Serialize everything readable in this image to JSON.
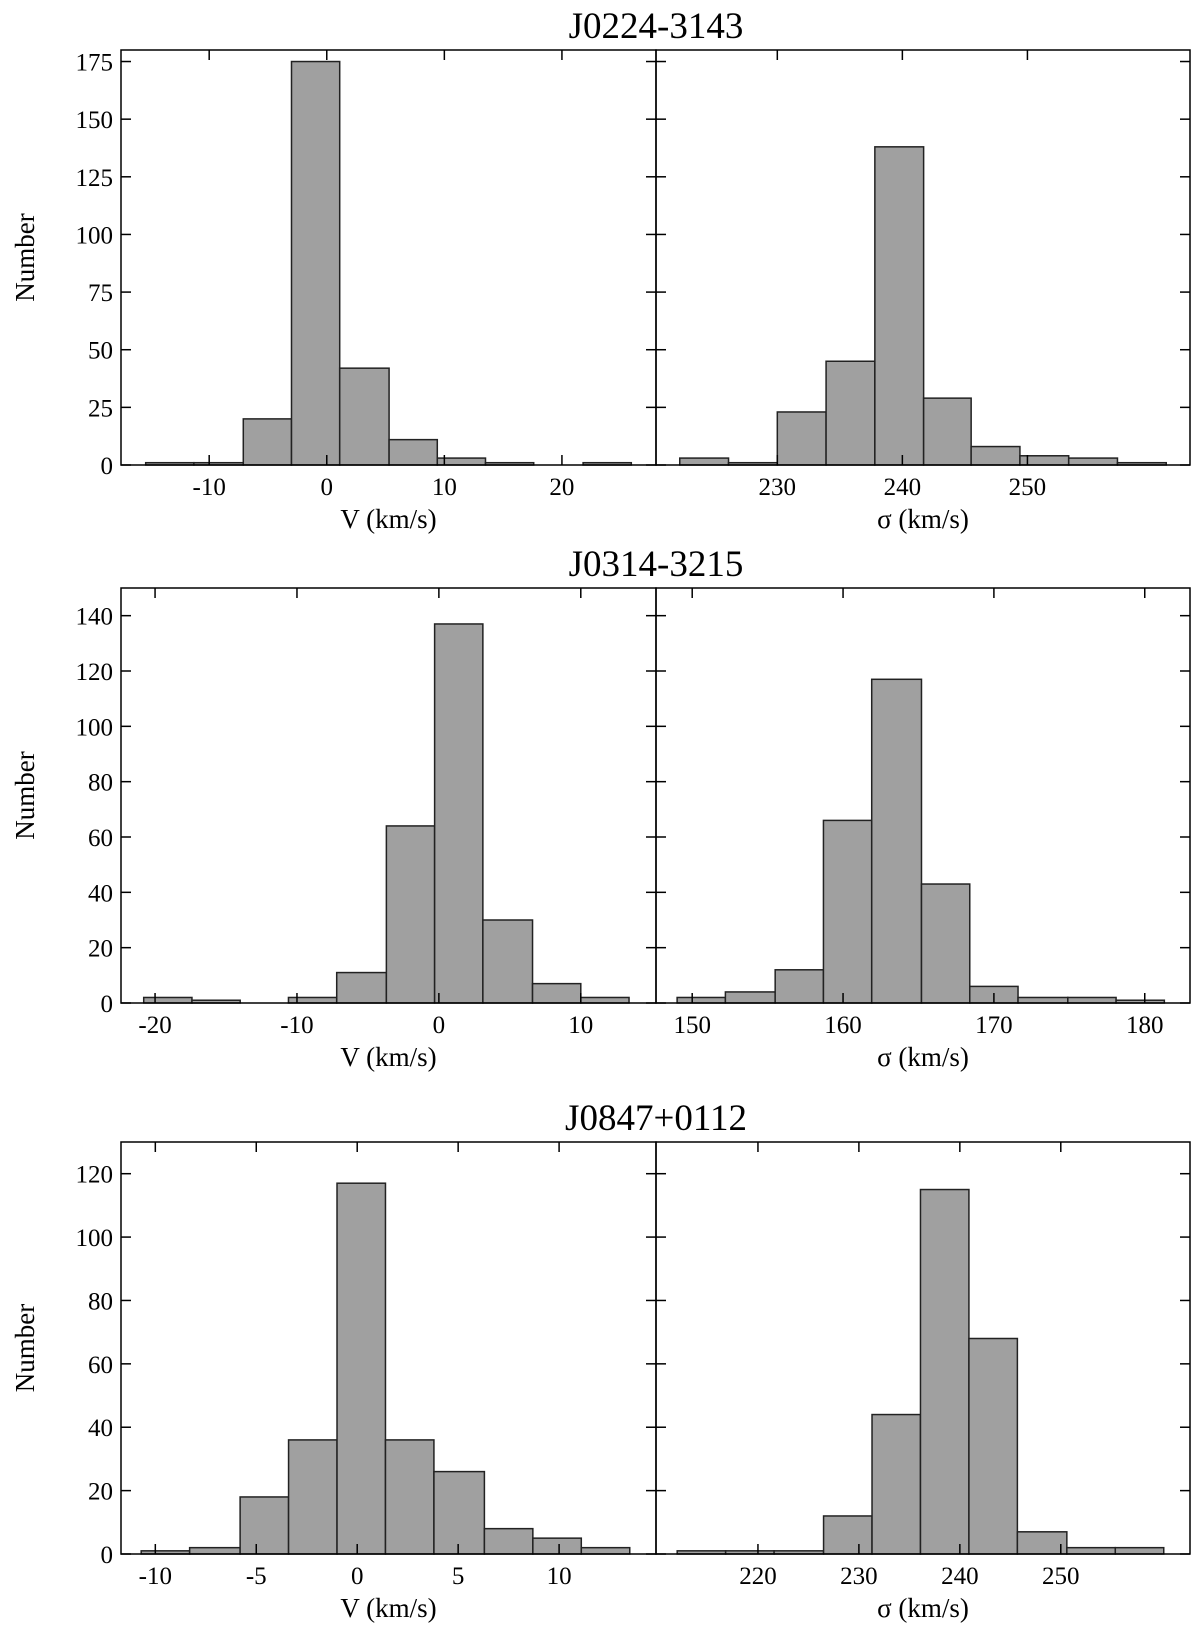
{
  "chart_data": [
    {
      "type": "histogram",
      "title": "J0224-3143",
      "xlabel": "V (km/s)",
      "ylabel": "Number",
      "color": "#a0a0a0",
      "bins": [
        -15.4,
        -11.3,
        -7.1,
        -3.0,
        1.1,
        5.3,
        9.4,
        13.5,
        17.6,
        21.8,
        25.9
      ],
      "values": [
        1,
        1,
        20,
        175,
        42,
        11,
        3,
        1,
        0,
        1
      ],
      "xlim": [
        -17.5,
        28
      ],
      "xticks": [
        -10,
        0,
        10,
        20
      ],
      "ylim": [
        0,
        180
      ],
      "yticks": [
        0,
        25,
        50,
        75,
        100,
        125,
        150,
        175
      ]
    },
    {
      "type": "histogram",
      "xlabel": "σ (km/s)",
      "color": "#a0a0a0",
      "bins": [
        222.2,
        226.1,
        230.0,
        233.9,
        237.8,
        241.7,
        245.5,
        249.4,
        253.3,
        257.2,
        261.1
      ],
      "values": [
        3,
        1,
        23,
        45,
        138,
        29,
        8,
        4,
        3,
        1
      ],
      "xlim": [
        220.3,
        263.0
      ],
      "xticks": [
        230,
        240,
        250
      ],
      "ylim": [
        0,
        180
      ]
    },
    {
      "type": "histogram",
      "title": "J0314-3215",
      "xlabel": "V (km/s)",
      "ylabel": "Number",
      "color": "#a0a0a0",
      "bins": [
        -20.8,
        -17.4,
        -14.0,
        -10.6,
        -7.2,
        -3.7,
        -0.3,
        3.1,
        6.6,
        10.0,
        13.4
      ],
      "values": [
        2,
        1,
        0,
        2,
        11,
        64,
        137,
        30,
        7,
        2
      ],
      "xlim": [
        -22.4,
        15.3
      ],
      "xticks": [
        -20,
        -10,
        0,
        10
      ],
      "ylim": [
        0,
        150
      ],
      "yticks": [
        0,
        20,
        40,
        60,
        80,
        100,
        120,
        140
      ]
    },
    {
      "type": "histogram",
      "xlabel": "σ (km/s)",
      "color": "#a0a0a0",
      "bins": [
        149.0,
        152.2,
        155.5,
        158.7,
        161.9,
        165.2,
        168.4,
        171.6,
        174.9,
        178.1,
        181.3
      ],
      "values": [
        2,
        4,
        12,
        66,
        117,
        43,
        6,
        2,
        2,
        1
      ],
      "xlim": [
        147.6,
        183.0
      ],
      "xticks": [
        150,
        160,
        170,
        180
      ],
      "ylim": [
        0,
        150
      ]
    },
    {
      "type": "histogram",
      "title": "J0847+0112",
      "xlabel": "V (km/s)",
      "ylabel": "Number",
      "color": "#a0a0a0",
      "bins": [
        -10.7,
        -8.3,
        -5.8,
        -3.4,
        -1.0,
        1.4,
        3.8,
        6.3,
        8.7,
        11.1,
        13.5
      ],
      "values": [
        1,
        2,
        18,
        36,
        117,
        36,
        26,
        8,
        5,
        2
      ],
      "xlim": [
        -11.7,
        14.8
      ],
      "xticks": [
        -10,
        -5,
        0,
        5,
        10
      ],
      "ylim": [
        0,
        130
      ],
      "yticks": [
        0,
        20,
        40,
        60,
        80,
        100,
        120
      ]
    },
    {
      "type": "histogram",
      "xlabel": "σ (km/s)",
      "color": "#a0a0a0",
      "bins": [
        212.0,
        216.8,
        221.6,
        226.5,
        231.3,
        236.1,
        240.9,
        245.7,
        250.6,
        255.4,
        260.2
      ],
      "values": [
        1,
        1,
        1,
        12,
        44,
        115,
        68,
        7,
        2,
        2
      ],
      "xlim": [
        209.9,
        262.8
      ],
      "xticks": [
        220,
        230,
        240,
        250
      ],
      "ylim": [
        0,
        130
      ]
    }
  ]
}
